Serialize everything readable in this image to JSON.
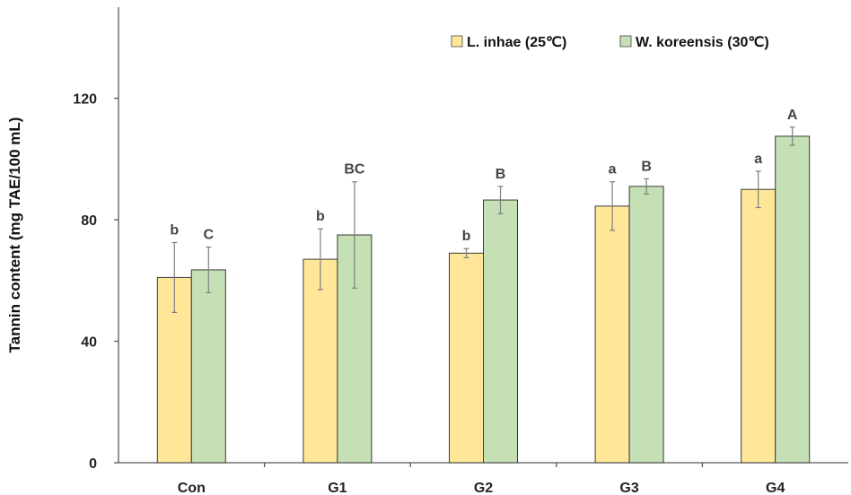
{
  "chart_data": {
    "type": "bar",
    "title": "",
    "xlabel": "",
    "ylabel": "Tannin content (mg TAE/100 mL)",
    "ylim": [
      0,
      150
    ],
    "yticks": [
      0,
      40,
      80,
      120
    ],
    "categories": [
      "Con",
      "G1",
      "G2",
      "G3",
      "G4"
    ],
    "legend_position": "top-right",
    "grid": false,
    "series": [
      {
        "name": "L. inhae (25℃)",
        "color": "#ffe699",
        "values": [
          61,
          67,
          69,
          84.5,
          90
        ],
        "errors": [
          11.5,
          10,
          1.5,
          8,
          6
        ],
        "labels": [
          "b",
          "b",
          "b",
          "a",
          "a"
        ]
      },
      {
        "name": "W. koreensis (30℃)",
        "color": "#c5e0b4",
        "values": [
          63.5,
          75,
          86.5,
          91,
          107.5
        ],
        "errors": [
          7.5,
          17.5,
          4.5,
          2.5,
          3
        ],
        "labels": [
          "C",
          "BC",
          "B",
          "B",
          "A"
        ]
      }
    ]
  }
}
